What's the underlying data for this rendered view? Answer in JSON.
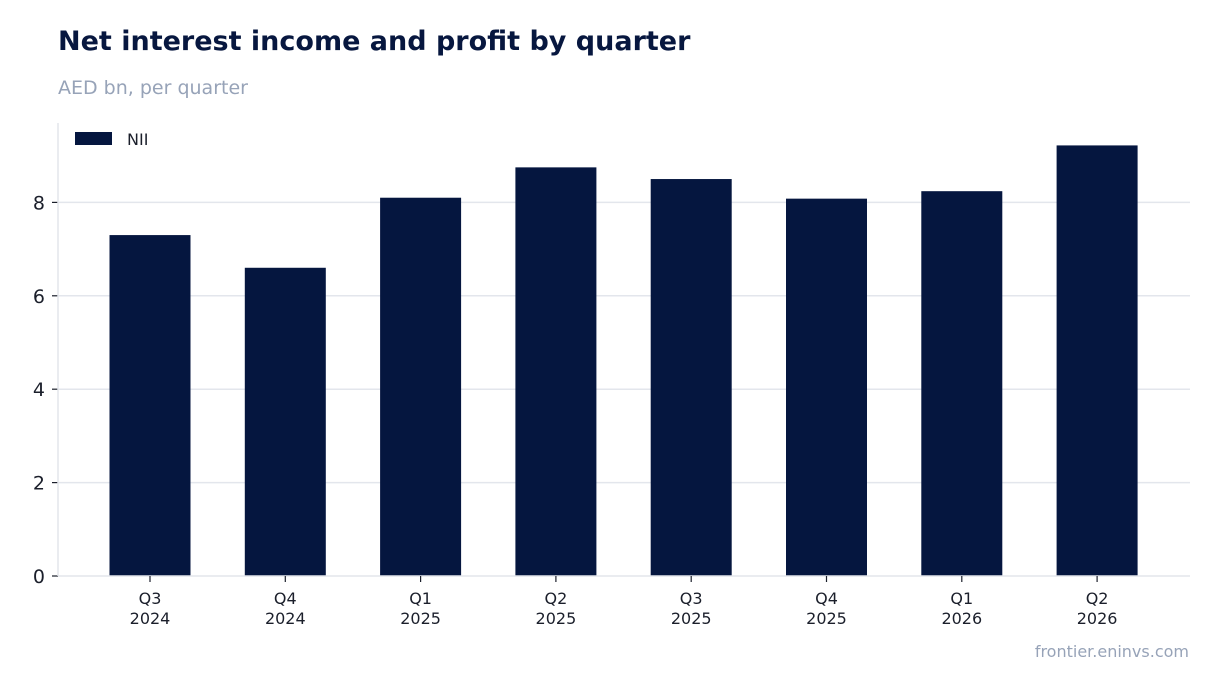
{
  "header": {
    "title": "Net interest income and profit by quarter",
    "subtitle": "AED bn, per quarter"
  },
  "footer": {
    "source": "frontier.eninvs.com"
  },
  "colors": {
    "bar": "#05163f",
    "grid": "#e3e6ec",
    "axis": "#1b1f2b"
  },
  "chart_data": {
    "type": "bar",
    "categories": [
      "Q3\n2024",
      "Q4\n2024",
      "Q1\n2025",
      "Q2\n2025",
      "Q3\n2025",
      "Q4\n2025",
      "Q1\n2026",
      "Q2\n2026"
    ],
    "series": [
      {
        "name": "NII",
        "values": [
          7.3,
          6.6,
          8.1,
          8.75,
          8.5,
          8.08,
          8.24,
          9.22
        ]
      }
    ],
    "title": "Net interest income and profit by quarter",
    "subtitle": "AED bn, per quarter",
    "ylim": [
      0,
      9.7
    ],
    "yticks": [
      0,
      2,
      4,
      6,
      8
    ],
    "grid": true,
    "legend": "top-left"
  }
}
